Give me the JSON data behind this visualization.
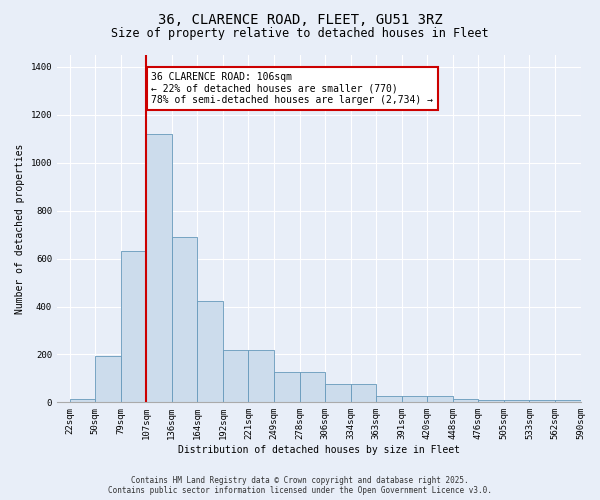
{
  "title": "36, CLARENCE ROAD, FLEET, GU51 3RZ",
  "subtitle": "Size of property relative to detached houses in Fleet",
  "xlabel": "Distribution of detached houses by size in Fleet",
  "ylabel": "Number of detached properties",
  "bar_values": [
    15,
    193,
    630,
    1120,
    690,
    425,
    220,
    218,
    125,
    125,
    75,
    75,
    28,
    28,
    25,
    15,
    10,
    8,
    8,
    8
  ],
  "bar_labels": [
    "22sqm",
    "50sqm",
    "79sqm",
    "107sqm",
    "136sqm",
    "164sqm",
    "192sqm",
    "221sqm",
    "249sqm",
    "278sqm",
    "306sqm",
    "334sqm",
    "363sqm",
    "391sqm",
    "420sqm",
    "448sqm",
    "476sqm",
    "505sqm",
    "533sqm",
    "562sqm",
    "590sqm"
  ],
  "bar_color": "#ccdcec",
  "bar_edge_color": "#6699bb",
  "vline_x": 3.0,
  "vline_color": "#cc0000",
  "annotation_text": "36 CLARENCE ROAD: 106sqm\n← 22% of detached houses are smaller (770)\n78% of semi-detached houses are larger (2,734) →",
  "annotation_box_color": "#ffffff",
  "annotation_box_edge": "#cc0000",
  "ylim": [
    0,
    1450
  ],
  "yticks": [
    0,
    200,
    400,
    600,
    800,
    1000,
    1200,
    1400
  ],
  "bg_color": "#e8eef8",
  "plot_bg_color": "#e8eef8",
  "footer_line1": "Contains HM Land Registry data © Crown copyright and database right 2025.",
  "footer_line2": "Contains public sector information licensed under the Open Government Licence v3.0.",
  "title_fontsize": 10,
  "subtitle_fontsize": 8.5,
  "annotation_fontsize": 7,
  "axis_fontsize": 7,
  "tick_fontsize": 6.5
}
